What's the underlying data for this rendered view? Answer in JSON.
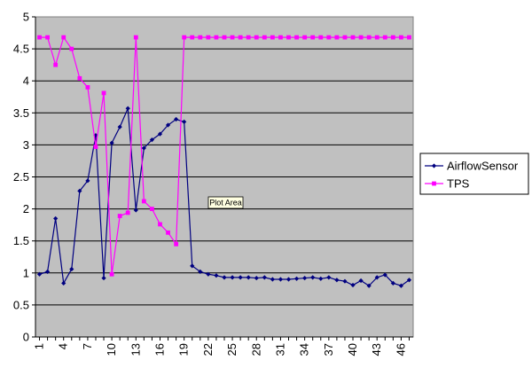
{
  "chart_data": {
    "type": "line",
    "title": "",
    "xlabel": "",
    "ylabel": "",
    "x": [
      1,
      2,
      3,
      4,
      5,
      6,
      7,
      8,
      9,
      10,
      11,
      12,
      13,
      14,
      15,
      16,
      17,
      18,
      19,
      20,
      21,
      22,
      23,
      24,
      25,
      26,
      27,
      28,
      29,
      30,
      31,
      32,
      33,
      34,
      35,
      36,
      37,
      38,
      39,
      40,
      41,
      42,
      43,
      44,
      45,
      46,
      47
    ],
    "x_tick_labels": [
      "1",
      "4",
      "7",
      "10",
      "13",
      "16",
      "19",
      "22",
      "25",
      "28",
      "31",
      "34",
      "37",
      "40",
      "43",
      "46"
    ],
    "xlim": [
      0.5,
      47.5
    ],
    "ylim": [
      0,
      5
    ],
    "y_ticks": [
      "0",
      "0.5",
      "1",
      "1.5",
      "2",
      "2.5",
      "3",
      "3.5",
      "4",
      "4.5",
      "5"
    ],
    "grid": "horizontal",
    "legend_position": "right",
    "series": [
      {
        "name": "AirflowSensor",
        "color": "#000080",
        "marker": "diamond",
        "values": [
          0.98,
          1.02,
          1.85,
          0.84,
          1.06,
          2.28,
          2.44,
          3.15,
          0.92,
          3.03,
          3.28,
          3.57,
          1.98,
          2.95,
          3.08,
          3.17,
          3.31,
          3.4,
          3.36,
          1.11,
          1.02,
          0.98,
          0.96,
          0.93,
          0.93,
          0.93,
          0.93,
          0.92,
          0.93,
          0.9,
          0.9,
          0.9,
          0.91,
          0.92,
          0.93,
          0.91,
          0.93,
          0.89,
          0.87,
          0.81,
          0.88,
          0.8,
          0.93,
          0.97,
          0.84,
          0.8,
          0.89
        ]
      },
      {
        "name": "TPS",
        "color": "#FF00FF",
        "marker": "square",
        "values": [
          4.68,
          4.68,
          4.25,
          4.68,
          4.5,
          4.04,
          3.9,
          2.97,
          3.81,
          0.98,
          1.89,
          1.94,
          4.68,
          2.12,
          2.0,
          1.76,
          1.63,
          1.45,
          4.68,
          4.68,
          4.68,
          4.68,
          4.68,
          4.68,
          4.68,
          4.68,
          4.68,
          4.68,
          4.68,
          4.68,
          4.68,
          4.68,
          4.68,
          4.68,
          4.68,
          4.68,
          4.68,
          4.68,
          4.68,
          4.68,
          4.68,
          4.68,
          4.68,
          4.68,
          4.68,
          4.68,
          4.68
        ]
      }
    ],
    "annotations": [
      {
        "text": "Plot Area",
        "kind": "tooltip"
      }
    ]
  }
}
